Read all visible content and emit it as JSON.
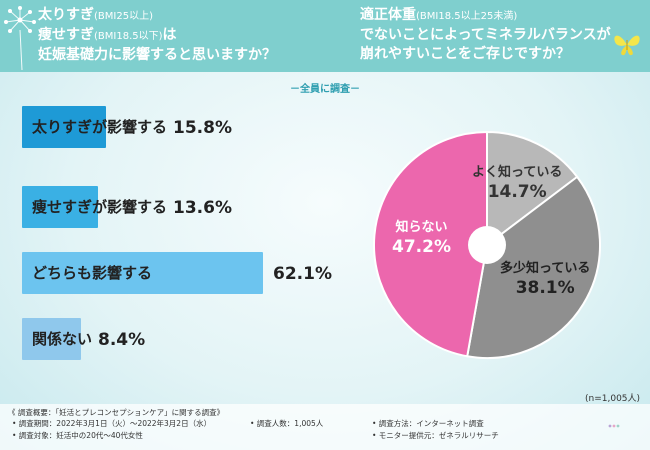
{
  "header": {
    "left_question": {
      "line1_main": "太りすぎ",
      "line1_note": "(BMI25以上)",
      "line2_main": "痩せすぎ",
      "line2_note": "(BMI18.5以下)",
      "line2_tail": "は",
      "line3": "妊娠基礎力に影響すると思いますか？"
    },
    "right_question": {
      "line1_main": "適正体重",
      "line1_note": "(BMI18.5以上25未満)",
      "line2": "でないことによってミネラルバランスが",
      "line3": "崩れやすいことをご存じですか？"
    }
  },
  "survey_tag": "全員に調査",
  "colors": {
    "header_bg": "#7fcfce",
    "bar_colors": [
      "#1e9ad6",
      "#3ab0e4",
      "#6cc4ef",
      "#8fc8ec"
    ],
    "pie_colors": [
      "#b8b8b8",
      "#8f8f8f",
      "#ec67ad"
    ]
  },
  "chart_data": [
    {
      "type": "bar",
      "orientation": "horizontal",
      "categories": [
        "太りすぎが影響する",
        "痩せすぎが影響する",
        "どちらも影響する",
        "関係ない"
      ],
      "values": [
        15.8,
        13.6,
        62.1,
        8.4
      ],
      "value_labels": [
        "15.8%",
        "13.6%",
        "62.1%",
        "8.4%"
      ],
      "unit": "%"
    },
    {
      "type": "pie",
      "categories": [
        "よく知っている",
        "多少知っている",
        "知らない"
      ],
      "values": [
        14.7,
        38.1,
        47.2
      ],
      "value_labels": [
        "14.7%",
        "38.1%",
        "47.2%"
      ],
      "unit": "%",
      "donut_hole": true
    }
  ],
  "sample_size": "(n=1,005人)",
  "footer": {
    "overview": "《 調査概要：「妊活とプレコンセプションケア」に関する調査》",
    "period": "• 調査期間：2022年3月1日（火）〜2022年3月2日（水）",
    "count": "• 調査人数：1,005人",
    "method": "• 調査方法：インターネット調査",
    "target": "• 調査対象：妊活中の20代〜40代女性",
    "provider": "• モニター提供元：ゼネラルリサーチ"
  }
}
